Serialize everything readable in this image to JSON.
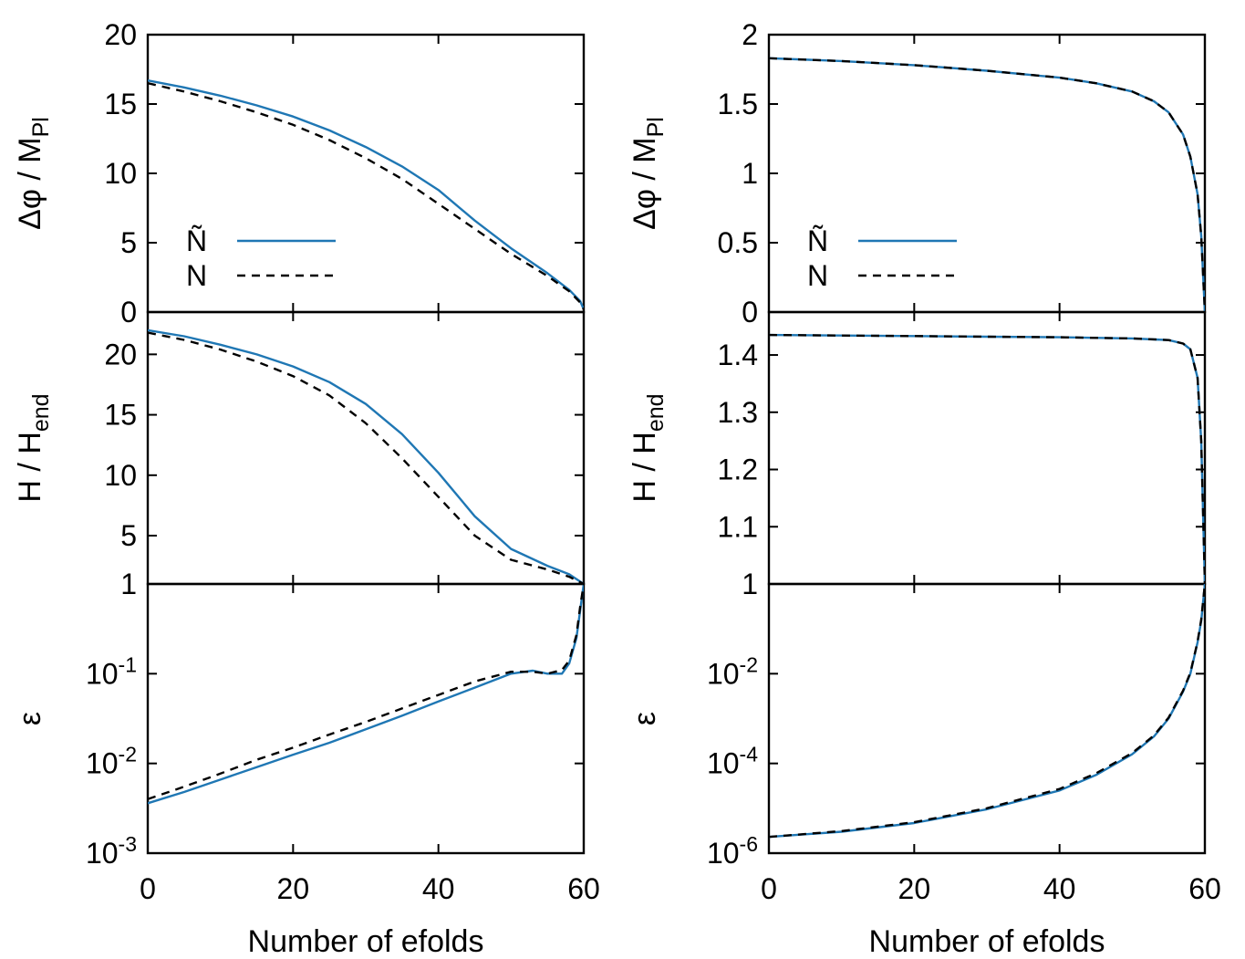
{
  "chart_data": [
    {
      "type": "line",
      "column": "left",
      "row": "top",
      "ylabel": "Δφ / M",
      "ylabel_sub": "Pl",
      "xlim": [
        0,
        60
      ],
      "ylim": [
        0,
        20
      ],
      "yscale": "linear",
      "yticks": [
        {
          "v": 0,
          "t": "0"
        },
        {
          "v": 5,
          "t": "5"
        },
        {
          "v": 10,
          "t": "10"
        },
        {
          "v": 15,
          "t": "15"
        },
        {
          "v": 20,
          "t": "20"
        }
      ],
      "legend": {
        "position": "lower-left"
      },
      "series": [
        {
          "name": "Ñ",
          "style": "solid",
          "color": "#1f77b4",
          "x": [
            0,
            5,
            10,
            15,
            20,
            25,
            30,
            35,
            40,
            45,
            50,
            55,
            58,
            59.5,
            60
          ],
          "y": [
            16.7,
            16.2,
            15.6,
            14.9,
            14.1,
            13.1,
            11.9,
            10.5,
            8.8,
            6.6,
            4.6,
            2.8,
            1.6,
            0.8,
            0.2
          ]
        },
        {
          "name": "N",
          "style": "dashed",
          "color": "#000000",
          "x": [
            0,
            5,
            10,
            15,
            20,
            25,
            30,
            35,
            40,
            45,
            50,
            55,
            58,
            59.5,
            60
          ],
          "y": [
            16.5,
            15.9,
            15.2,
            14.4,
            13.5,
            12.4,
            11.1,
            9.6,
            7.8,
            6.0,
            4.2,
            2.6,
            1.5,
            0.7,
            0.2
          ]
        }
      ]
    },
    {
      "type": "line",
      "column": "left",
      "row": "middle",
      "ylabel": "H / H",
      "ylabel_sub": "end",
      "xlim": [
        0,
        60
      ],
      "ylim": [
        1,
        23.5
      ],
      "yscale": "linear",
      "yticks": [
        {
          "v": 1,
          "t": "1"
        },
        {
          "v": 5,
          "t": "5"
        },
        {
          "v": 10,
          "t": "10"
        },
        {
          "v": 15,
          "t": "15"
        },
        {
          "v": 20,
          "t": "20"
        }
      ],
      "series": [
        {
          "name": "Ñ",
          "style": "solid",
          "color": "#1f77b4",
          "x": [
            0,
            5,
            10,
            15,
            20,
            25,
            30,
            35,
            40,
            45,
            50,
            55,
            58,
            60
          ],
          "y": [
            22.0,
            21.5,
            20.8,
            20.0,
            19.0,
            17.7,
            15.9,
            13.4,
            10.2,
            6.6,
            3.9,
            2.5,
            1.8,
            1.0
          ]
        },
        {
          "name": "N",
          "style": "dashed",
          "color": "#000000",
          "x": [
            0,
            5,
            10,
            15,
            20,
            25,
            30,
            35,
            40,
            45,
            50,
            55,
            58,
            60
          ],
          "y": [
            21.8,
            21.2,
            20.4,
            19.4,
            18.2,
            16.6,
            14.3,
            11.4,
            8.2,
            5.0,
            3.0,
            2.2,
            1.6,
            1.0
          ]
        }
      ]
    },
    {
      "type": "line",
      "column": "left",
      "row": "bottom",
      "ylabel": "ε",
      "xlabel": "Number of efolds",
      "xlim": [
        0,
        60
      ],
      "xticks": [
        0,
        20,
        40,
        60
      ],
      "ylim": [
        0.001,
        1
      ],
      "yscale": "log",
      "yticks": [
        {
          "v": 0.001,
          "t": "10",
          "exp": "-3"
        },
        {
          "v": 0.01,
          "t": "10",
          "exp": "-2"
        },
        {
          "v": 0.1,
          "t": "10",
          "exp": "-1"
        }
      ],
      "series": [
        {
          "name": "Ñ",
          "style": "solid",
          "color": "#1f77b4",
          "x": [
            0,
            5,
            10,
            15,
            20,
            25,
            30,
            35,
            40,
            45,
            50,
            53,
            55,
            57,
            58,
            59,
            59.5,
            60
          ],
          "y": [
            0.0036,
            0.0048,
            0.0066,
            0.0091,
            0.0125,
            0.017,
            0.024,
            0.034,
            0.049,
            0.07,
            0.1,
            0.108,
            0.1,
            0.1,
            0.13,
            0.25,
            0.5,
            1.0
          ]
        },
        {
          "name": "N",
          "style": "dashed",
          "color": "#000000",
          "x": [
            0,
            5,
            10,
            15,
            20,
            25,
            30,
            35,
            40,
            45,
            50,
            53,
            55,
            57,
            58,
            59,
            59.5,
            60
          ],
          "y": [
            0.004,
            0.0055,
            0.0077,
            0.011,
            0.015,
            0.021,
            0.029,
            0.041,
            0.058,
            0.082,
            0.105,
            0.105,
            0.1,
            0.11,
            0.14,
            0.27,
            0.55,
            1.0
          ]
        }
      ]
    },
    {
      "type": "line",
      "column": "right",
      "row": "top",
      "ylabel": "Δφ / M",
      "ylabel_sub": "Pl",
      "xlim": [
        0,
        60
      ],
      "ylim": [
        0,
        2
      ],
      "yscale": "linear",
      "yticks": [
        {
          "v": 0,
          "t": "0"
        },
        {
          "v": 0.5,
          "t": "0.5"
        },
        {
          "v": 1,
          "t": "1"
        },
        {
          "v": 1.5,
          "t": "1.5"
        },
        {
          "v": 2,
          "t": "2"
        }
      ],
      "legend": {
        "position": "lower-left"
      },
      "series": [
        {
          "name": "Ñ",
          "style": "solid",
          "color": "#1f77b4",
          "x": [
            0,
            10,
            20,
            30,
            40,
            45,
            50,
            53,
            55,
            57,
            58,
            59,
            59.5,
            60
          ],
          "y": [
            1.83,
            1.81,
            1.78,
            1.74,
            1.69,
            1.65,
            1.59,
            1.52,
            1.44,
            1.28,
            1.12,
            0.85,
            0.55,
            0.0
          ]
        },
        {
          "name": "N",
          "style": "dashed",
          "color": "#000000",
          "x": [
            0,
            10,
            20,
            30,
            40,
            45,
            50,
            53,
            55,
            57,
            58,
            59,
            59.5,
            60
          ],
          "y": [
            1.83,
            1.81,
            1.78,
            1.74,
            1.69,
            1.65,
            1.59,
            1.52,
            1.44,
            1.28,
            1.12,
            0.85,
            0.55,
            0.0
          ]
        }
      ]
    },
    {
      "type": "line",
      "column": "right",
      "row": "middle",
      "ylabel": "H / H",
      "ylabel_sub": "end",
      "xlim": [
        0,
        60
      ],
      "ylim": [
        1,
        1.475
      ],
      "yscale": "linear",
      "yticks": [
        {
          "v": 1,
          "t": "1"
        },
        {
          "v": 1.1,
          "t": "1.1"
        },
        {
          "v": 1.2,
          "t": "1.2"
        },
        {
          "v": 1.3,
          "t": "1.3"
        },
        {
          "v": 1.4,
          "t": "1.4"
        }
      ],
      "series": [
        {
          "name": "Ñ",
          "style": "solid",
          "color": "#1f77b4",
          "x": [
            0,
            10,
            20,
            30,
            40,
            50,
            55,
            57,
            58,
            59,
            59.5,
            60
          ],
          "y": [
            1.435,
            1.434,
            1.433,
            1.432,
            1.431,
            1.429,
            1.426,
            1.42,
            1.41,
            1.36,
            1.25,
            1.0
          ]
        },
        {
          "name": "N",
          "style": "dashed",
          "color": "#000000",
          "x": [
            0,
            10,
            20,
            30,
            40,
            50,
            55,
            57,
            58,
            59,
            59.5,
            60
          ],
          "y": [
            1.435,
            1.434,
            1.433,
            1.432,
            1.431,
            1.429,
            1.426,
            1.42,
            1.41,
            1.36,
            1.25,
            1.0
          ]
        }
      ]
    },
    {
      "type": "line",
      "column": "right",
      "row": "bottom",
      "ylabel": "ε",
      "xlabel": "Number of efolds",
      "xlim": [
        0,
        60
      ],
      "xticks": [
        0,
        20,
        40,
        60
      ],
      "ylim": [
        1e-06,
        1
      ],
      "yscale": "log",
      "yticks": [
        {
          "v": 1e-06,
          "t": "10",
          "exp": "-6"
        },
        {
          "v": 0.0001,
          "t": "10",
          "exp": "-4"
        },
        {
          "v": 0.01,
          "t": "10",
          "exp": "-2"
        }
      ],
      "series": [
        {
          "name": "Ñ",
          "style": "solid",
          "color": "#1f77b4",
          "x": [
            0,
            10,
            20,
            30,
            40,
            45,
            50,
            53,
            55,
            57,
            58,
            59,
            59.5,
            60
          ],
          "y": [
            2.3e-06,
            3e-06,
            4.7e-06,
            9.5e-06,
            2.5e-05,
            5.5e-05,
            0.00016,
            0.0004,
            0.001,
            0.004,
            0.01,
            0.05,
            0.15,
            1.0
          ]
        },
        {
          "name": "N",
          "style": "dashed",
          "color": "#000000",
          "x": [
            0,
            10,
            20,
            30,
            40,
            45,
            50,
            53,
            55,
            57,
            58,
            59,
            59.5,
            60
          ],
          "y": [
            2.3e-06,
            3.1e-06,
            4.9e-06,
            1e-05,
            2.7e-05,
            6e-05,
            0.00017,
            0.00042,
            0.00105,
            0.0042,
            0.0105,
            0.052,
            0.16,
            1.0
          ]
        }
      ]
    }
  ]
}
